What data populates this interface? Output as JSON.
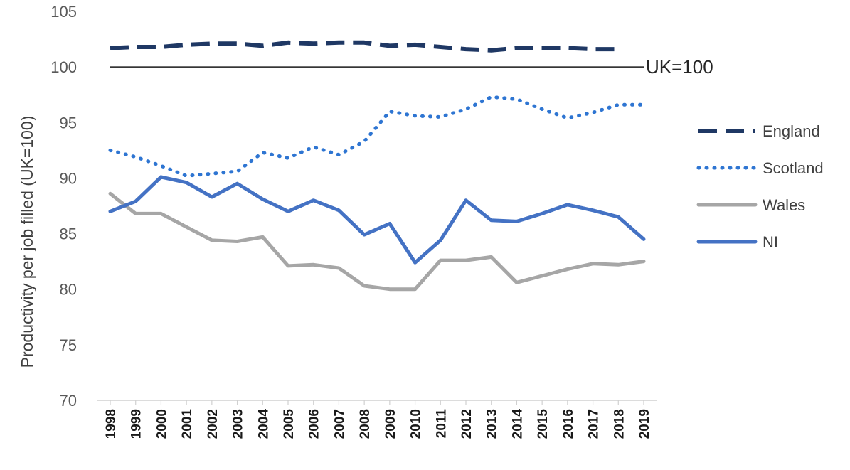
{
  "chart_data": {
    "type": "line",
    "title": "",
    "xlabel": "",
    "ylabel": "Productivity  per job filled (UK=100)",
    "ylim": [
      70,
      105
    ],
    "yticks": [
      70,
      75,
      80,
      85,
      90,
      95,
      100,
      105
    ],
    "categories": [
      "1998",
      "1999",
      "2000",
      "2001",
      "2002",
      "2003",
      "2004",
      "2005",
      "2006",
      "2007",
      "2008",
      "2009",
      "2010",
      "2011",
      "2012",
      "2013",
      "2014",
      "2015",
      "2016",
      "2017",
      "2018",
      "2019"
    ],
    "reference_line": {
      "value": 100,
      "label": "UK=100"
    },
    "legend_position": "right",
    "series": [
      {
        "name": "England",
        "style": "dashed",
        "color": "#1f3864",
        "values": [
          101.7,
          101.8,
          101.8,
          102.0,
          102.1,
          102.1,
          101.9,
          102.2,
          102.1,
          102.2,
          102.2,
          101.9,
          102.0,
          101.8,
          101.6,
          101.5,
          101.7,
          101.7,
          101.7,
          101.6,
          101.6,
          null
        ]
      },
      {
        "name": "Scotland",
        "style": "dotted",
        "color": "#2e75d2",
        "values": [
          92.5,
          91.9,
          91.1,
          90.2,
          90.4,
          90.6,
          92.3,
          91.8,
          92.8,
          92.1,
          93.3,
          96.0,
          95.6,
          95.5,
          96.2,
          97.3,
          97.1,
          96.2,
          95.4,
          95.9,
          96.6,
          96.6
        ]
      },
      {
        "name": "Wales",
        "style": "solid",
        "color": "#a6a6a6",
        "values": [
          88.6,
          86.8,
          86.8,
          85.6,
          84.4,
          84.3,
          84.7,
          82.1,
          82.2,
          81.9,
          80.3,
          80.0,
          80.0,
          82.6,
          82.6,
          82.9,
          80.6,
          81.2,
          81.8,
          82.3,
          82.2,
          82.5
        ]
      },
      {
        "name": "NI",
        "style": "solid",
        "color": "#4472c4",
        "values": [
          87.0,
          87.9,
          90.1,
          89.6,
          88.3,
          89.5,
          88.1,
          87.0,
          88.0,
          87.1,
          84.9,
          85.9,
          82.4,
          84.4,
          88.0,
          86.2,
          86.1,
          86.8,
          87.6,
          87.1,
          86.5,
          84.5
        ]
      }
    ]
  }
}
